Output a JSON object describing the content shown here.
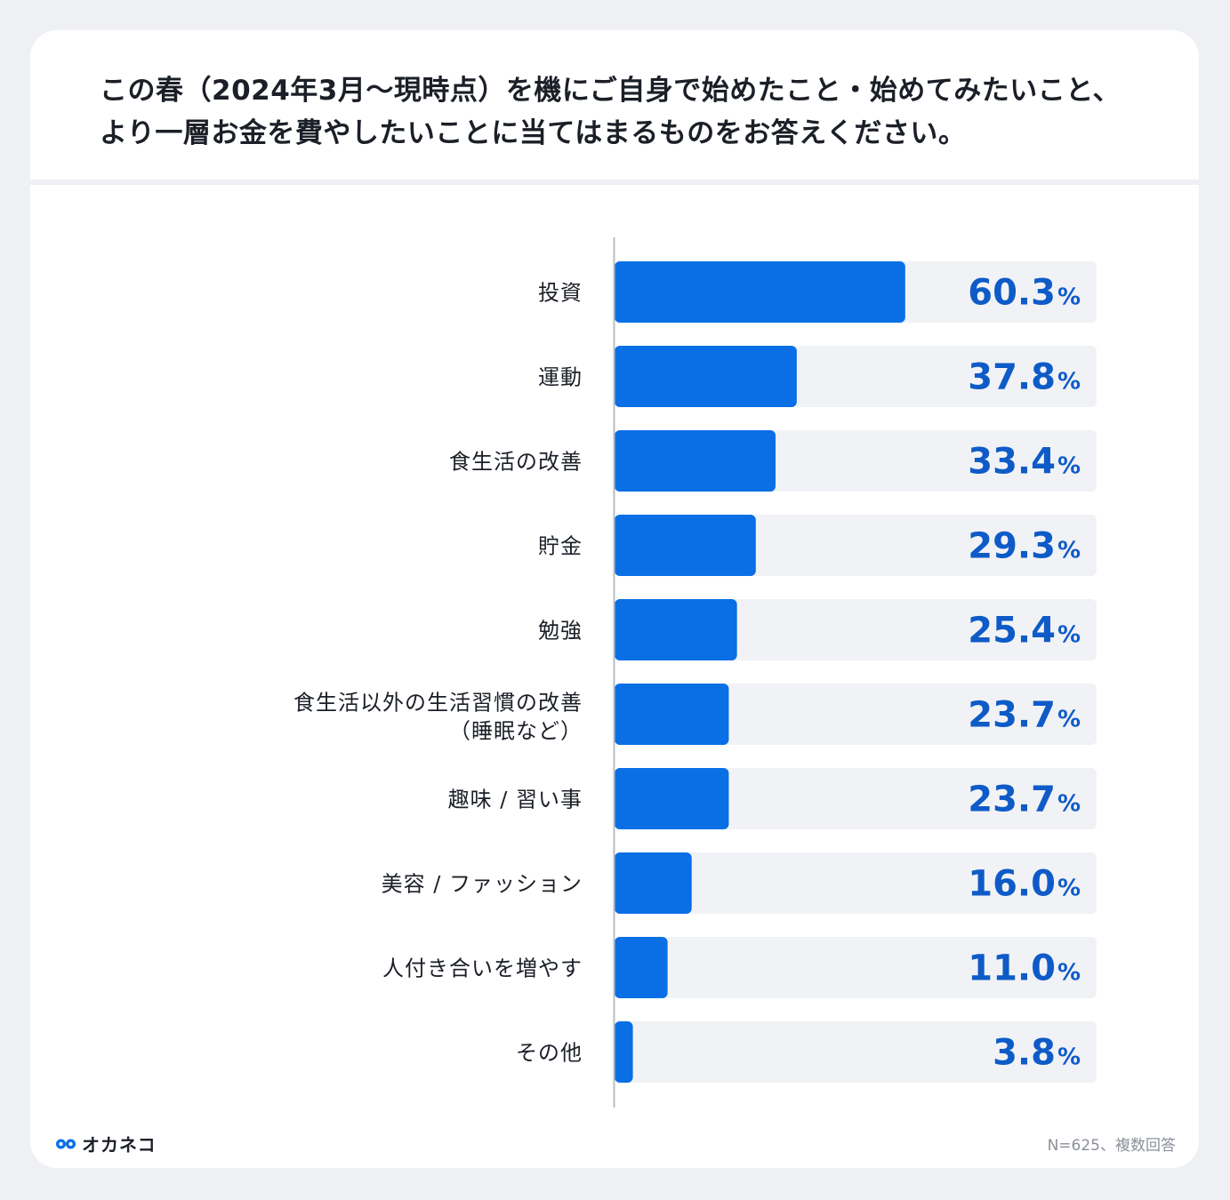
{
  "chart_data": {
    "type": "bar",
    "orientation": "horizontal",
    "title": "この春（2024年3月〜現時点）を機にご自身で始めたこと・始めてみたいこと、より一層お金を費やしたいことに当てはまるものをお答えください。",
    "categories": [
      [
        "投資"
      ],
      [
        "運動"
      ],
      [
        "食生活の改善"
      ],
      [
        "貯金"
      ],
      [
        "勉強"
      ],
      [
        "食生活以外の生活習慣の改善",
        "（睡眠など）"
      ],
      [
        "趣味 / 習い事"
      ],
      [
        "美容 / ファッション"
      ],
      [
        "人付き合いを増やす"
      ],
      [
        "その他"
      ]
    ],
    "values": [
      60.3,
      37.8,
      33.4,
      29.3,
      25.4,
      23.7,
      23.7,
      16.0,
      11.0,
      3.8
    ],
    "value_labels": [
      "60.3",
      "37.8",
      "33.4",
      "29.3",
      "25.4",
      "23.7",
      "23.7",
      "16.0",
      "11.0",
      "3.8"
    ],
    "unit": "%",
    "xlim": [
      0,
      100
    ],
    "colors": {
      "bar": "#0a6fe5",
      "track": "#f1f2f5",
      "value": "#0e5bc8",
      "axis": "#b9bcc3"
    }
  },
  "footer": {
    "brand": "オカネコ",
    "note": "N=625、複数回答"
  }
}
